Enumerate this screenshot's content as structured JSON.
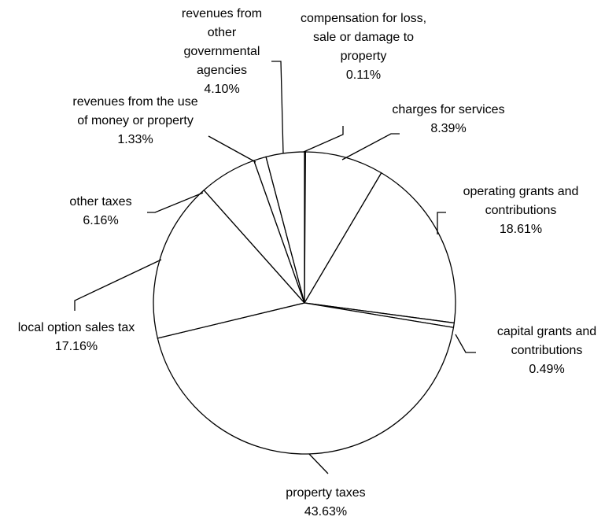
{
  "chart_data": {
    "type": "pie",
    "categories": [
      "compensation for loss, sale or damage to property",
      "charges for services",
      "operating grants and contributions",
      "capital grants and contributions",
      "property taxes",
      "local option sales tax",
      "other taxes",
      "revenues from the use of money or property",
      "revenues from other governmental agencies"
    ],
    "values": [
      0.11,
      8.39,
      18.61,
      0.49,
      43.63,
      17.16,
      6.16,
      1.33,
      4.1
    ],
    "value_labels": [
      "0.11%",
      "8.39%",
      "18.61%",
      "0.49%",
      "43.63%",
      "17.16%",
      "6.16%",
      "1.33%",
      "4.10%"
    ],
    "color": "#ffffff"
  }
}
